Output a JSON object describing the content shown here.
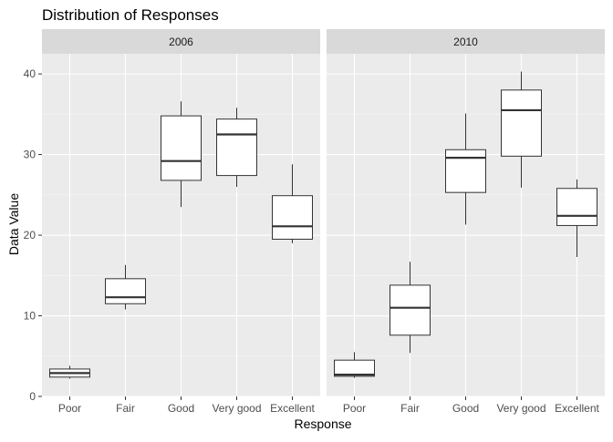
{
  "chart_data": {
    "type": "boxplot",
    "title": "Distribution of Responses",
    "xlabel": "Response",
    "ylabel": "Data Value",
    "ylim": [
      0,
      42.5
    ],
    "yticks": [
      0,
      10,
      20,
      30,
      40
    ],
    "categories": [
      "Poor",
      "Fair",
      "Good",
      "Very good",
      "Excellent"
    ],
    "grid": true,
    "facets": [
      {
        "label": "2006",
        "boxes": [
          {
            "category": "Poor",
            "min": 2.2,
            "q1": 2.4,
            "median": 2.9,
            "q3": 3.4,
            "max": 3.8
          },
          {
            "category": "Fair",
            "min": 10.8,
            "q1": 11.5,
            "median": 12.3,
            "q3": 14.6,
            "max": 16.3
          },
          {
            "category": "Good",
            "min": 23.5,
            "q1": 26.8,
            "median": 29.2,
            "q3": 34.8,
            "max": 36.6
          },
          {
            "category": "Very good",
            "min": 26.0,
            "q1": 27.4,
            "median": 32.5,
            "q3": 34.4,
            "max": 35.8
          },
          {
            "category": "Excellent",
            "min": 19.0,
            "q1": 19.5,
            "median": 21.1,
            "q3": 24.9,
            "max": 28.8
          }
        ]
      },
      {
        "label": "2010",
        "boxes": [
          {
            "category": "Poor",
            "min": 2.3,
            "q1": 2.5,
            "median": 2.7,
            "q3": 4.5,
            "max": 5.5
          },
          {
            "category": "Fair",
            "min": 5.4,
            "q1": 7.6,
            "median": 11.0,
            "q3": 13.8,
            "max": 16.7
          },
          {
            "category": "Good",
            "min": 21.3,
            "q1": 25.3,
            "median": 29.6,
            "q3": 30.6,
            "max": 35.1
          },
          {
            "category": "Very good",
            "min": 25.9,
            "q1": 29.8,
            "median": 35.5,
            "q3": 38.0,
            "max": 40.3
          },
          {
            "category": "Excellent",
            "min": 17.3,
            "q1": 21.2,
            "median": 22.4,
            "q3": 25.8,
            "max": 26.9
          }
        ]
      }
    ],
    "colors": {
      "panel_background": "#ebebeb",
      "grid_major": "#ffffff",
      "grid_minor": "#f5f5f5",
      "strip_background": "#d9d9d9",
      "box_fill": "#ffffff",
      "box_line": "#333333",
      "tick_text": "#4d4d4d"
    }
  }
}
